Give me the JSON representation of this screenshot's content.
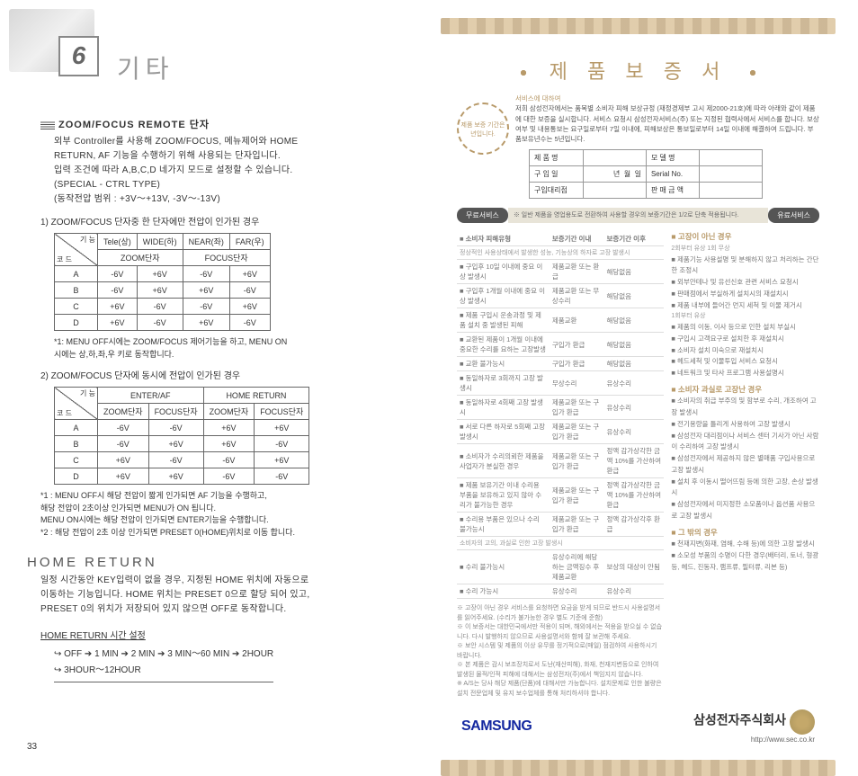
{
  "chapter": {
    "num": "6",
    "title": "기타"
  },
  "zoom_section": {
    "title": "ZOOM/FOCUS REMOTE 단자",
    "desc1": "외부 Controller를 사용해 ZOOM/FOCUS, 메뉴제어와 HOME",
    "desc2": "RETURN, AF 기능을 수행하기 위해 사용되는 단자입니다.",
    "desc3": "입력 조건에 따라 A,B,C,D 네가지 모드로 설정할 수 있습니다.",
    "desc4": "(SPECIAL - CTRL TYPE)",
    "desc5": "(동작전압 범위 : +3V～+13V, -3V～-13V)",
    "sub1": "1) ZOOM/FOCUS 단자중 한 단자에만 전압이 인가된 경우",
    "sub2": "2) ZOOM/FOCUS 단자에 동시에 전압이 인가된 경우"
  },
  "table1": {
    "diag_top": "기 능",
    "diag_bot": "코 드",
    "h1": "Tele(상)",
    "h2": "WIDE(하)",
    "h3": "NEAR(좌)",
    "h4": "FAR(우)",
    "g1": "ZOOM단자",
    "g2": "FOCUS단자",
    "rows": [
      {
        "c": "A",
        "v": [
          "-6V",
          "+6V",
          "-6V",
          "+6V"
        ]
      },
      {
        "c": "B",
        "v": [
          "-6V",
          "+6V",
          "+6V",
          "-6V"
        ]
      },
      {
        "c": "C",
        "v": [
          "+6V",
          "-6V",
          "-6V",
          "+6V"
        ]
      },
      {
        "c": "D",
        "v": [
          "+6V",
          "-6V",
          "+6V",
          "-6V"
        ]
      }
    ]
  },
  "table1_note": "*1: MENU OFF시에는 ZOOM/FOCUS 제어기능을 하고, MENU ON\n    시에는 상,하,좌,우 키로 동작합니다.",
  "table2": {
    "diag_top": "기 능",
    "diag_bot": "코 드",
    "h1": "ENTER/AF",
    "h2": "HOME RETURN",
    "g": [
      "ZOOM단자",
      "FOCUS단자",
      "ZOOM단자",
      "FOCUS단자"
    ],
    "rows": [
      {
        "c": "A",
        "v": [
          "-6V",
          "-6V",
          "+6V",
          "+6V"
        ]
      },
      {
        "c": "B",
        "v": [
          "-6V",
          "+6V",
          "+6V",
          "-6V"
        ]
      },
      {
        "c": "C",
        "v": [
          "+6V",
          "-6V",
          "-6V",
          "+6V"
        ]
      },
      {
        "c": "D",
        "v": [
          "+6V",
          "+6V",
          "-6V",
          "-6V"
        ]
      }
    ]
  },
  "notes_below": {
    "n1a": "*1 : MENU OFF시 해당 전압이 짧게 인가되면 AF 기능을 수행하고,",
    "n1b": "     해당 전압이 2초이상 인가되면 MENU가 ON 됩니다.",
    "n1c": "     MENU ON시에는 해당 전압이 인가되면 ENTER기능을 수행합니다.",
    "n2": "*2 : 해당 전압이 2초 이상 인가되면 PRESET 0(HOME)위치로 이동 합니다."
  },
  "home": {
    "title": "HOME RETURN",
    "d1": "일정 시간동안 KEY입력이 없을 경우, 지정된 HOME 위치에 자동으로",
    "d2": "이동하는 기능입니다. HOME 위치는 PRESET 0으로 할당 되어 있고,",
    "d3": "PRESET 0의 위치가 저장되어 있지 않으면 OFF로 동작합니다.",
    "sub": "HOME RETURN 시간 설정",
    "arrows": "↪ OFF ➔ 1 MIN ➔ 2 MIN ➔ 3 MIN～60 MIN  ➔ 2HOUR\n↪ 3HOUR～12HOUR"
  },
  "page_num": "33",
  "warranty": {
    "title": "제 품 보 증 서",
    "intro_label": "서비스에 대하여",
    "intro": "저희 삼성전자에서는 품목별 소비자 피해 보상규정 (재정경제부 고시 제2000-21호)에 따라 아래와 같이 제품에 대한 보증을 실시합니다. 서비스 요청시 삼성전자서비스(주) 또는 지정된 협력사에서 서비스를 합니다. 보상여부 및 내용통보는 요구일로부터 7일 이내에, 피해보상은 통보일로부터 14일 이내에 해결하여 드립니다. 부품보유년수는 5년입니다.",
    "seal": "제품 보증 기간은\n년입니다.",
    "info_labels": {
      "name": "제 품 명",
      "model": "모 델 명",
      "date": "구 입 일",
      "y": "년",
      "m": "월",
      "d": "일",
      "serial": "Serial No.",
      "dealer": "구입대리점",
      "price": "판 매 금 액"
    },
    "free_svc": "무료서비스",
    "paid_svc": "유료서비스",
    "bar_note": "※ 일반 제품을 영업용도로 전환하여 사용할 경우의 보증기간은 1/2로 단축 적용됩니다.",
    "damage_hdr": {
      "type": "소비자 피해유형",
      "in": "보증기간 이내",
      "out": "보증기간 이후"
    },
    "damage_sub": "정상적인 사용상태에서 발생한 성능, 기능상의 하자로 고장 발생시",
    "damage_rows": [
      {
        "t": "구입후 10일 이내에 중요 이상 발생시",
        "a": "제품교환 또는 환급",
        "b": "해당없음"
      },
      {
        "t": "구입후 1개월 이내에 중요 이상 발생시",
        "a": "제품교환 또는 무상수리",
        "b": "해당없음"
      },
      {
        "t": "제품 구입시 운송과정 및 제품 설치 중 발생된 피해",
        "a": "제품교환",
        "b": "해당없음"
      },
      {
        "t": "교환된 제품이 1개월 이내에 중요한 수리를 요하는 고장발생",
        "a": "구입가 환급",
        "b": "해당없음"
      },
      {
        "t": "교환 불가능시",
        "a": "구입가 환급",
        "b": "해당없음"
      },
      {
        "t": "동일하자로 3회까지 고장 발생시",
        "a": "무상수리",
        "b": "유상수리"
      },
      {
        "t": "동일하자로 4회째 고장 발생시",
        "a": "제품교환 또는 구입가 환급",
        "b": "유상수리"
      },
      {
        "t": "서로 다른 하자로 5회째 고장 발생시",
        "a": "제품교환 또는 구입가 환급",
        "b": "유상수리"
      },
      {
        "t": "소비자가 수리의뢰한 제품을 사업자가 분실한 경우",
        "a": "제품교환 또는 구입가 환급",
        "b": "정액 감가상각한 금액 10%를 가산하여 환급"
      },
      {
        "t": "제품 보유기간 이내 수리용 부품을 보유하고 있지 않아 수리가 불가능한 경우",
        "a": "제품교환 또는 구입가 환급",
        "b": "정액 감가상각한 금액 10%를 가산하여 환급"
      },
      {
        "t": "수리용 부품은 있으나 수리 불가능시",
        "a": "제품교환 또는 구입가 환급",
        "b": "정액 감가상각후 환급"
      }
    ],
    "damage_sub2": "소비자의 고의, 과실로 인한 고장 발생시",
    "damage_rows2": [
      {
        "t": "수리 불가능시",
        "a": "유상수리에 해당하는 금액징수 후 제품교환",
        "b": "보상의 대상이 안됨"
      },
      {
        "t": "수리 가능시",
        "a": "유상수리",
        "b": "유상수리"
      }
    ],
    "not_fault_hdr": "고장이 아닌 경우",
    "nf_sub1": "2회부터 유상 1회 무상",
    "nf1": [
      "제품기능 사용설명 및 분해하지 않고 처리하는 간단한 조정시",
      "외부안테나 및 유선신호 관련 서비스 요청시",
      "판매점에서 부실하게 설치시의 재설치시",
      "제품 내부에 들어간 먼지 세척 및 이물 제거시"
    ],
    "nf_sub2": "1회부터 유상",
    "nf2": [
      "제품의 이동, 이사 등으로 인한 설치 부실시",
      "구입시 고객요구로 설치한 후 재설치시",
      "소비자 설치 미숙으로 재설치시",
      "헤드세척 및 이물투입 서비스 요청시",
      "네트워크 및 타사 프로그램 사용설명시"
    ],
    "cust_fault_hdr": "소비자 과실로 고장난 경우",
    "cf": [
      "소비자의 취급 부주의 및 함부로 수리, 개조하여 고장 발생시",
      "전기용량을 틀리게 사용하여 고장 발생시",
      "삼성전자 대리점이나 서비스 센터 기사가 아닌 사람이 수리하여 고장 발생시",
      "삼성전자에서 제공하지 않은 별매품 구입사용으로 고장 발생시",
      "설치 후 이동시 떨어뜨림 등에 의한 고장, 손상 발생시",
      "삼성전자에서 미지정한 소모품이나 옵션품 사용으로 고장 발생시"
    ],
    "etc_hdr": "그 밖의 경우",
    "etc": [
      "천재지변(화재, 염해, 수해 등)에 의한 고장 발생시",
      "소모성 부품의 수명이 다한 경우(배터리, 토너, 형광등, 헤드, 진동자, 램프류, 필터류, 리본 등)"
    ],
    "footnotes": [
      "※ 고장이 아닌 경우 서비스를 요청하면 요금을 받게 되므로 반드시 사용설명서를 읽어주세요. (수리가 불가능한 경우 별도 기준에 준함)",
      "※ 이 보증서는 대한민국에서만 적용이 되며, 해외에서는 적용을 받으실 수 없습니다. 다시 발행하지 않으므로 사용설명서와 함께 잘 보관해 주세요.",
      "※ 보안 시스템 및 제품의 이상 유무를 정기적으로(매일) 점검하여 사용하시기 바랍니다.",
      "※ 본 제품은 감시 보조장치로서 도난(재산피해), 화재, 천재지변등으로 인하여 발생된 물적/인적 피해에 대해서는 삼성전자(주)에서 책임지지 않습니다.",
      "※ A/S는 당사 해당 제품(단품)에 대해서만 가능합니다. 설치문제로 인한 불량은 설치 전문업체 및 유지 보수업체를 통해 처리하셔야 합니다."
    ],
    "logo": "SAMSUNG",
    "company": "삼성전자주식회사",
    "url": "http://www.sec.co.kr"
  }
}
